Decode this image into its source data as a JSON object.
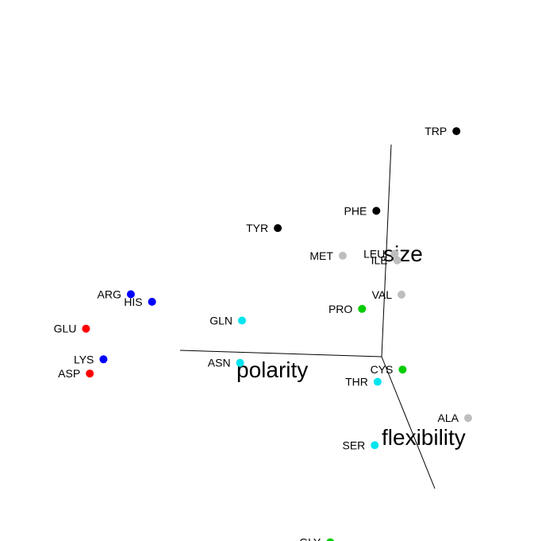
{
  "chart_data": {
    "type": "scatter",
    "projection": "3d",
    "axes": {
      "x": "polarity",
      "y": "flexibility",
      "z": "size"
    },
    "colors": {
      "acidic": "#ff0000",
      "basic": "#0000ff",
      "polar": "#00e5ee",
      "hydrophobic": "#bebebe",
      "special": "#00cd00",
      "aromatic": "#000000"
    },
    "points": [
      {
        "name": "TRP",
        "x": -0.9,
        "y": -0.9,
        "z": 1.6,
        "group": "aromatic"
      },
      {
        "name": "TYR",
        "x": 1.0,
        "y": -0.3,
        "z": 1.0,
        "group": "aromatic"
      },
      {
        "name": "PHE",
        "x": -0.2,
        "y": -1.1,
        "z": 0.7,
        "group": "aromatic"
      },
      {
        "name": "MET",
        "x": 0.2,
        "y": -0.8,
        "z": 0.45,
        "group": "hydrophobic"
      },
      {
        "name": "ILE",
        "x": -0.4,
        "y": -1.0,
        "z": 0.3,
        "group": "hydrophobic"
      },
      {
        "name": "LEU",
        "x": -0.4,
        "y": -1.1,
        "z": 0.3,
        "group": "hydrophobic"
      },
      {
        "name": "VAL",
        "x": -0.4,
        "y": -0.8,
        "z": 0.1,
        "group": "hydrophobic"
      },
      {
        "name": "ALA",
        "x": -1.0,
        "y": -0.4,
        "z": -0.8,
        "group": "hydrophobic"
      },
      {
        "name": "ARG",
        "x": 2.6,
        "y": 0.3,
        "z": 0.7,
        "group": "basic"
      },
      {
        "name": "HIS",
        "x": 2.3,
        "y": 0.0,
        "z": 0.45,
        "group": "basic"
      },
      {
        "name": "LYS",
        "x": 2.9,
        "y": 0.5,
        "z": 0.2,
        "group": "basic"
      },
      {
        "name": "GLU",
        "x": 3.0,
        "y": 0.2,
        "z": 0.3,
        "group": "acidic"
      },
      {
        "name": "ASP",
        "x": 3.0,
        "y": 0.4,
        "z": 0.0,
        "group": "acidic"
      },
      {
        "name": "GLN",
        "x": 1.4,
        "y": 0.0,
        "z": 0.3,
        "group": "polar"
      },
      {
        "name": "ASN",
        "x": 1.4,
        "y": 0.0,
        "z": -0.1,
        "group": "polar"
      },
      {
        "name": "THR",
        "x": 0.0,
        "y": -0.1,
        "z": -0.3,
        "group": "polar"
      },
      {
        "name": "SER",
        "x": 0.0,
        "y": -0.1,
        "z": -0.9,
        "group": "polar"
      },
      {
        "name": "PRO",
        "x": 0.1,
        "y": -0.4,
        "z": 0.2,
        "group": "special"
      },
      {
        "name": "CYS",
        "x": -0.3,
        "y": -0.3,
        "z": -0.3,
        "group": "special"
      },
      {
        "name": "GLY",
        "x": 0.6,
        "y": 0.6,
        "z": -1.4,
        "group": "special"
      }
    ]
  }
}
